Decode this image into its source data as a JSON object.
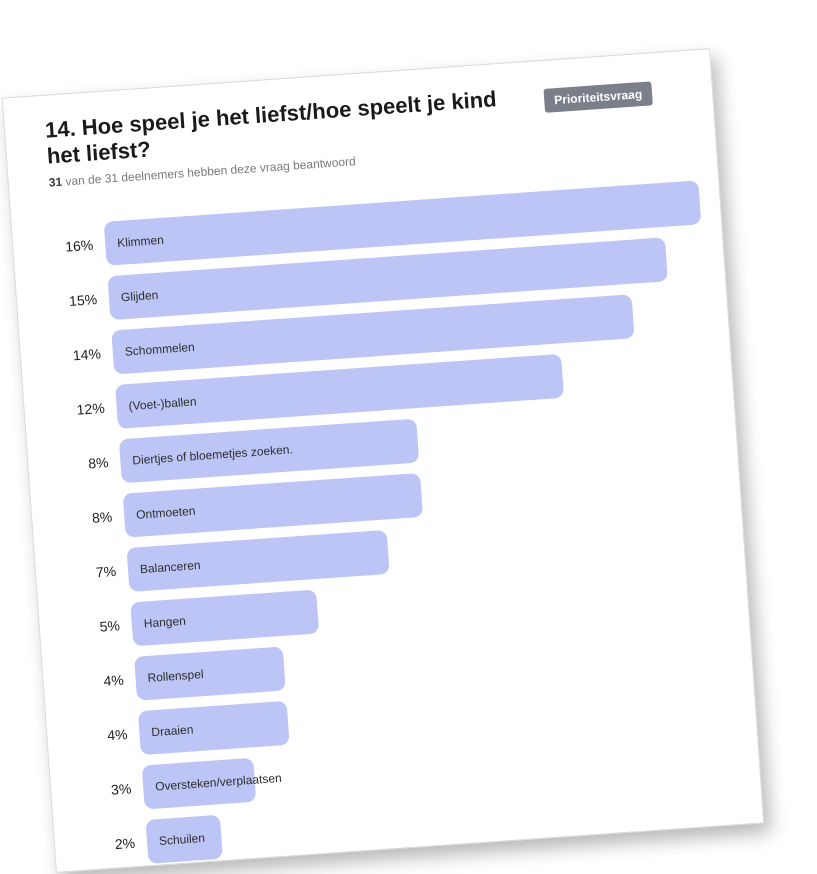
{
  "question": {
    "title": "14. Hoe speel je het liefst/hoe speelt je kind het liefst?",
    "badge": "Prioriteitsvraag",
    "respondents_count": "31",
    "respondents_text": "van de 31 deelnemers hebben deze vraag beantwoord"
  },
  "colors": {
    "bar": "#bcc5f5",
    "badge": "#7b7f8a"
  },
  "chart_data": {
    "type": "bar",
    "orientation": "horizontal",
    "categories": [
      "Klimmen",
      "Glijden",
      "Schommelen",
      "(Voet-)ballen",
      "Diertjes of bloemetjes zoeken.",
      "Ontmoeten",
      "Balanceren",
      "Hangen",
      "Rollenspel",
      "Draaien",
      "Oversteken/verplaatsen",
      "Schuilen"
    ],
    "values": [
      16,
      15,
      14,
      12,
      8,
      8,
      7,
      5,
      4,
      4,
      3,
      2
    ],
    "value_labels": [
      "16%",
      "15%",
      "14%",
      "12%",
      "8%",
      "8%",
      "7%",
      "5%",
      "4%",
      "4%",
      "3%",
      "2%"
    ],
    "unit": "%",
    "xlim": [
      0,
      16
    ]
  }
}
